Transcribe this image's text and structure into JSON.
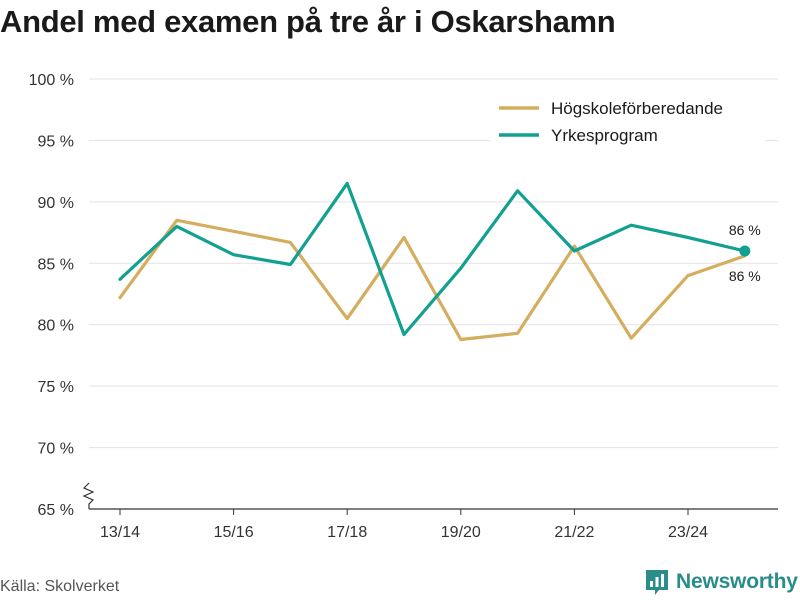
{
  "title": "Andel med examen på tre år i Oskarshamn",
  "source": "Källa: Skolverket",
  "brand": {
    "name": "Newsworthy",
    "color": "#2a8d8a",
    "icon": "newsworthy-logo-icon"
  },
  "chart_data": {
    "type": "line",
    "title": "Andel med examen på tre år i Oskarshamn",
    "xlabel": "",
    "ylabel": "",
    "x": [
      "13/14",
      "14/15",
      "15/16",
      "16/17",
      "17/18",
      "18/19",
      "19/20",
      "20/21",
      "21/22",
      "22/23",
      "23/24",
      "24/25"
    ],
    "x_tick_labels": [
      "13/14",
      "15/16",
      "17/18",
      "19/20",
      "21/22",
      "23/24"
    ],
    "ylim": [
      65,
      100
    ],
    "y_ticks": [
      65,
      70,
      75,
      80,
      85,
      90,
      95,
      100
    ],
    "y_tick_labels": [
      "65 %",
      "70 %",
      "75 %",
      "80 %",
      "85 %",
      "90 %",
      "95 %",
      "100 %"
    ],
    "grid": true,
    "legend_position": "top-right",
    "series": [
      {
        "name": "Högskoleförberedande",
        "color": "#d4ad5f",
        "values": [
          82.2,
          88.5,
          87.6,
          86.7,
          80.5,
          87.1,
          78.8,
          79.3,
          86.4,
          78.9,
          84.0,
          85.6
        ]
      },
      {
        "name": "Yrkesprogram",
        "color": "#12a090",
        "values": [
          83.7,
          88.0,
          85.7,
          84.9,
          91.5,
          79.2,
          84.6,
          90.9,
          86.0,
          88.1,
          87.1,
          86.0
        ]
      }
    ],
    "annotations": [
      {
        "series": 1,
        "index": 11,
        "text": "86 %",
        "position": "above"
      },
      {
        "series": 0,
        "index": 11,
        "text": "86 %",
        "position": "below"
      }
    ]
  }
}
